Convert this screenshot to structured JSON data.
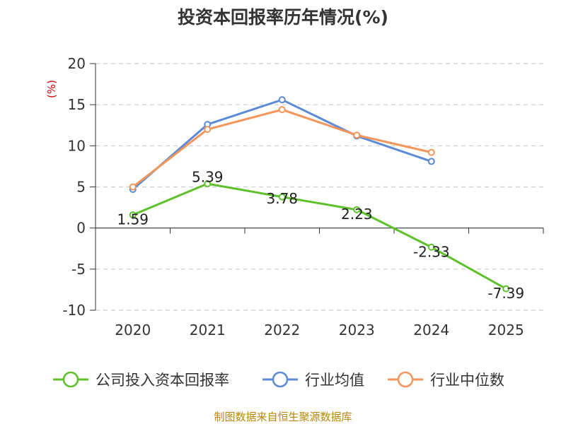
{
  "chart_data": {
    "type": "line",
    "title": "投资本回报率历年情况(%)",
    "ylabel": "(%)",
    "xlabel": "",
    "categories": [
      "2020",
      "2021",
      "2022",
      "2023",
      "2024",
      "2025"
    ],
    "ylim": [
      -10,
      20
    ],
    "yticks": [
      "20",
      "15",
      "10",
      "5",
      "0",
      "-5",
      "-10"
    ],
    "ytick_values": [
      20,
      15,
      10,
      5,
      0,
      -5,
      -10
    ],
    "grid": true,
    "legend_position": "bottom",
    "series": [
      {
        "name": "公司投入资本回报率",
        "color": "#5cc12a",
        "values": [
          1.59,
          5.39,
          3.78,
          2.23,
          -2.33,
          -7.39
        ],
        "labels": [
          "1.59",
          "5.39",
          "3.78",
          "2.23",
          "-2.33",
          "-7.39"
        ]
      },
      {
        "name": "行业均值",
        "color": "#5b8ad8",
        "values": [
          4.7,
          12.6,
          15.6,
          11.2,
          8.1,
          null
        ]
      },
      {
        "name": "行业中位数",
        "color": "#f5955a",
        "values": [
          5.0,
          12.0,
          14.4,
          11.3,
          9.2,
          null
        ]
      }
    ],
    "source": "制图数据来自恒生聚源数据库"
  }
}
